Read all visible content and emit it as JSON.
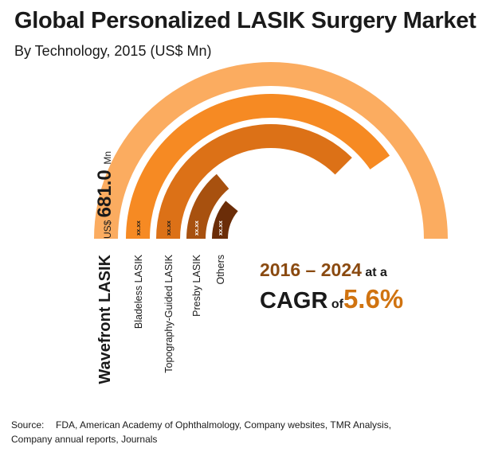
{
  "header": {
    "title": "Global Personalized LASIK Surgery Market",
    "subtitle": "By Technology, 2015 (US$ Mn)"
  },
  "chart_data": {
    "type": "radial-bar",
    "title": "Global Personalized LASIK Surgery Market",
    "subtitle": "By Technology, 2015 (US$ Mn)",
    "categories": [
      "Wavefront LASIK",
      "Bladeless LASIK",
      "Topography-Guided LASIK",
      "Presby LASIK",
      "Others"
    ],
    "labels": [
      "US$ 681.0 Mn",
      "xx.xx",
      "xx.xx",
      "xx.xx",
      "xx.xx"
    ],
    "highlight": {
      "currency": "US$",
      "value": "681.0",
      "unit": "Mn"
    },
    "angular_extent_deg": [
      180,
      145,
      135,
      50,
      40
    ],
    "colors": [
      "#fbac60",
      "#f68a23",
      "#dc7117",
      "#a8510f",
      "#6b2d08"
    ],
    "label_colors": [
      "#1a1a1a",
      "#1a1a1a",
      "#1a1a1a",
      "#ffffff",
      "#ffffff"
    ]
  },
  "cagr": {
    "period": "2016 – 2024",
    "at_a": "at a",
    "label": "CAGR",
    "of": "of",
    "value": "5.6%"
  },
  "source": {
    "label": "Source:",
    "text": "FDA, American Academy of Ophthalmology, Company websites, TMR Analysis, Company annual reports, Journals"
  }
}
